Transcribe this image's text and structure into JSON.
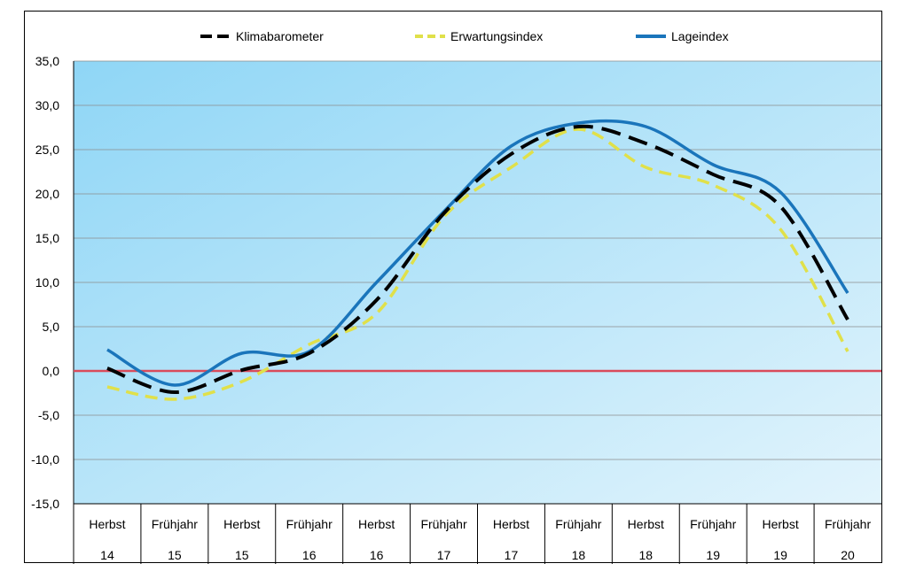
{
  "chart_data": {
    "type": "line",
    "title": "",
    "xlabel": "",
    "ylabel": "",
    "ylim": [
      -15,
      35
    ],
    "yticks": [
      "35,0",
      "30,0",
      "25,0",
      "20,0",
      "15,0",
      "10,0",
      "5,0",
      "0,0",
      "-5,0",
      "-10,0",
      "-15,0"
    ],
    "categories": [
      {
        "season": "Herbst",
        "year": "14"
      },
      {
        "season": "Frühjahr",
        "year": "15"
      },
      {
        "season": "Herbst",
        "year": "15"
      },
      {
        "season": "Frühjahr",
        "year": "16"
      },
      {
        "season": "Herbst",
        "year": "16"
      },
      {
        "season": "Frühjahr",
        "year": "17"
      },
      {
        "season": "Herbst",
        "year": "17"
      },
      {
        "season": "Frühjahr",
        "year": "18"
      },
      {
        "season": "Herbst",
        "year": "18"
      },
      {
        "season": "Frühjahr",
        "year": "19"
      },
      {
        "season": "Herbst",
        "year": "19"
      },
      {
        "season": "Frühjahr",
        "year": "20"
      }
    ],
    "series": [
      {
        "name": "Klimabarometer",
        "color": "#000000",
        "style": "dashed",
        "values": [
          0.3,
          -2.4,
          0.1,
          2.0,
          8.0,
          17.8,
          24.5,
          27.6,
          25.7,
          22.2,
          18.6,
          5.8
        ]
      },
      {
        "name": "Erwartungsindex",
        "color": "#e0e04a",
        "style": "dashed",
        "values": [
          -1.8,
          -3.2,
          -1.2,
          3.0,
          6.5,
          17.4,
          23.0,
          27.3,
          23.0,
          21.0,
          16.0,
          2.2
        ]
      },
      {
        "name": "Lageindex",
        "color": "#1a75bb",
        "style": "solid",
        "values": [
          2.4,
          -1.6,
          2.0,
          2.2,
          10.0,
          18.0,
          25.4,
          28.0,
          27.6,
          23.3,
          20.2,
          8.8
        ]
      }
    ],
    "reference_line": {
      "value": 0,
      "color": "#d94b5b"
    },
    "grid": true,
    "legend_position": "top"
  }
}
